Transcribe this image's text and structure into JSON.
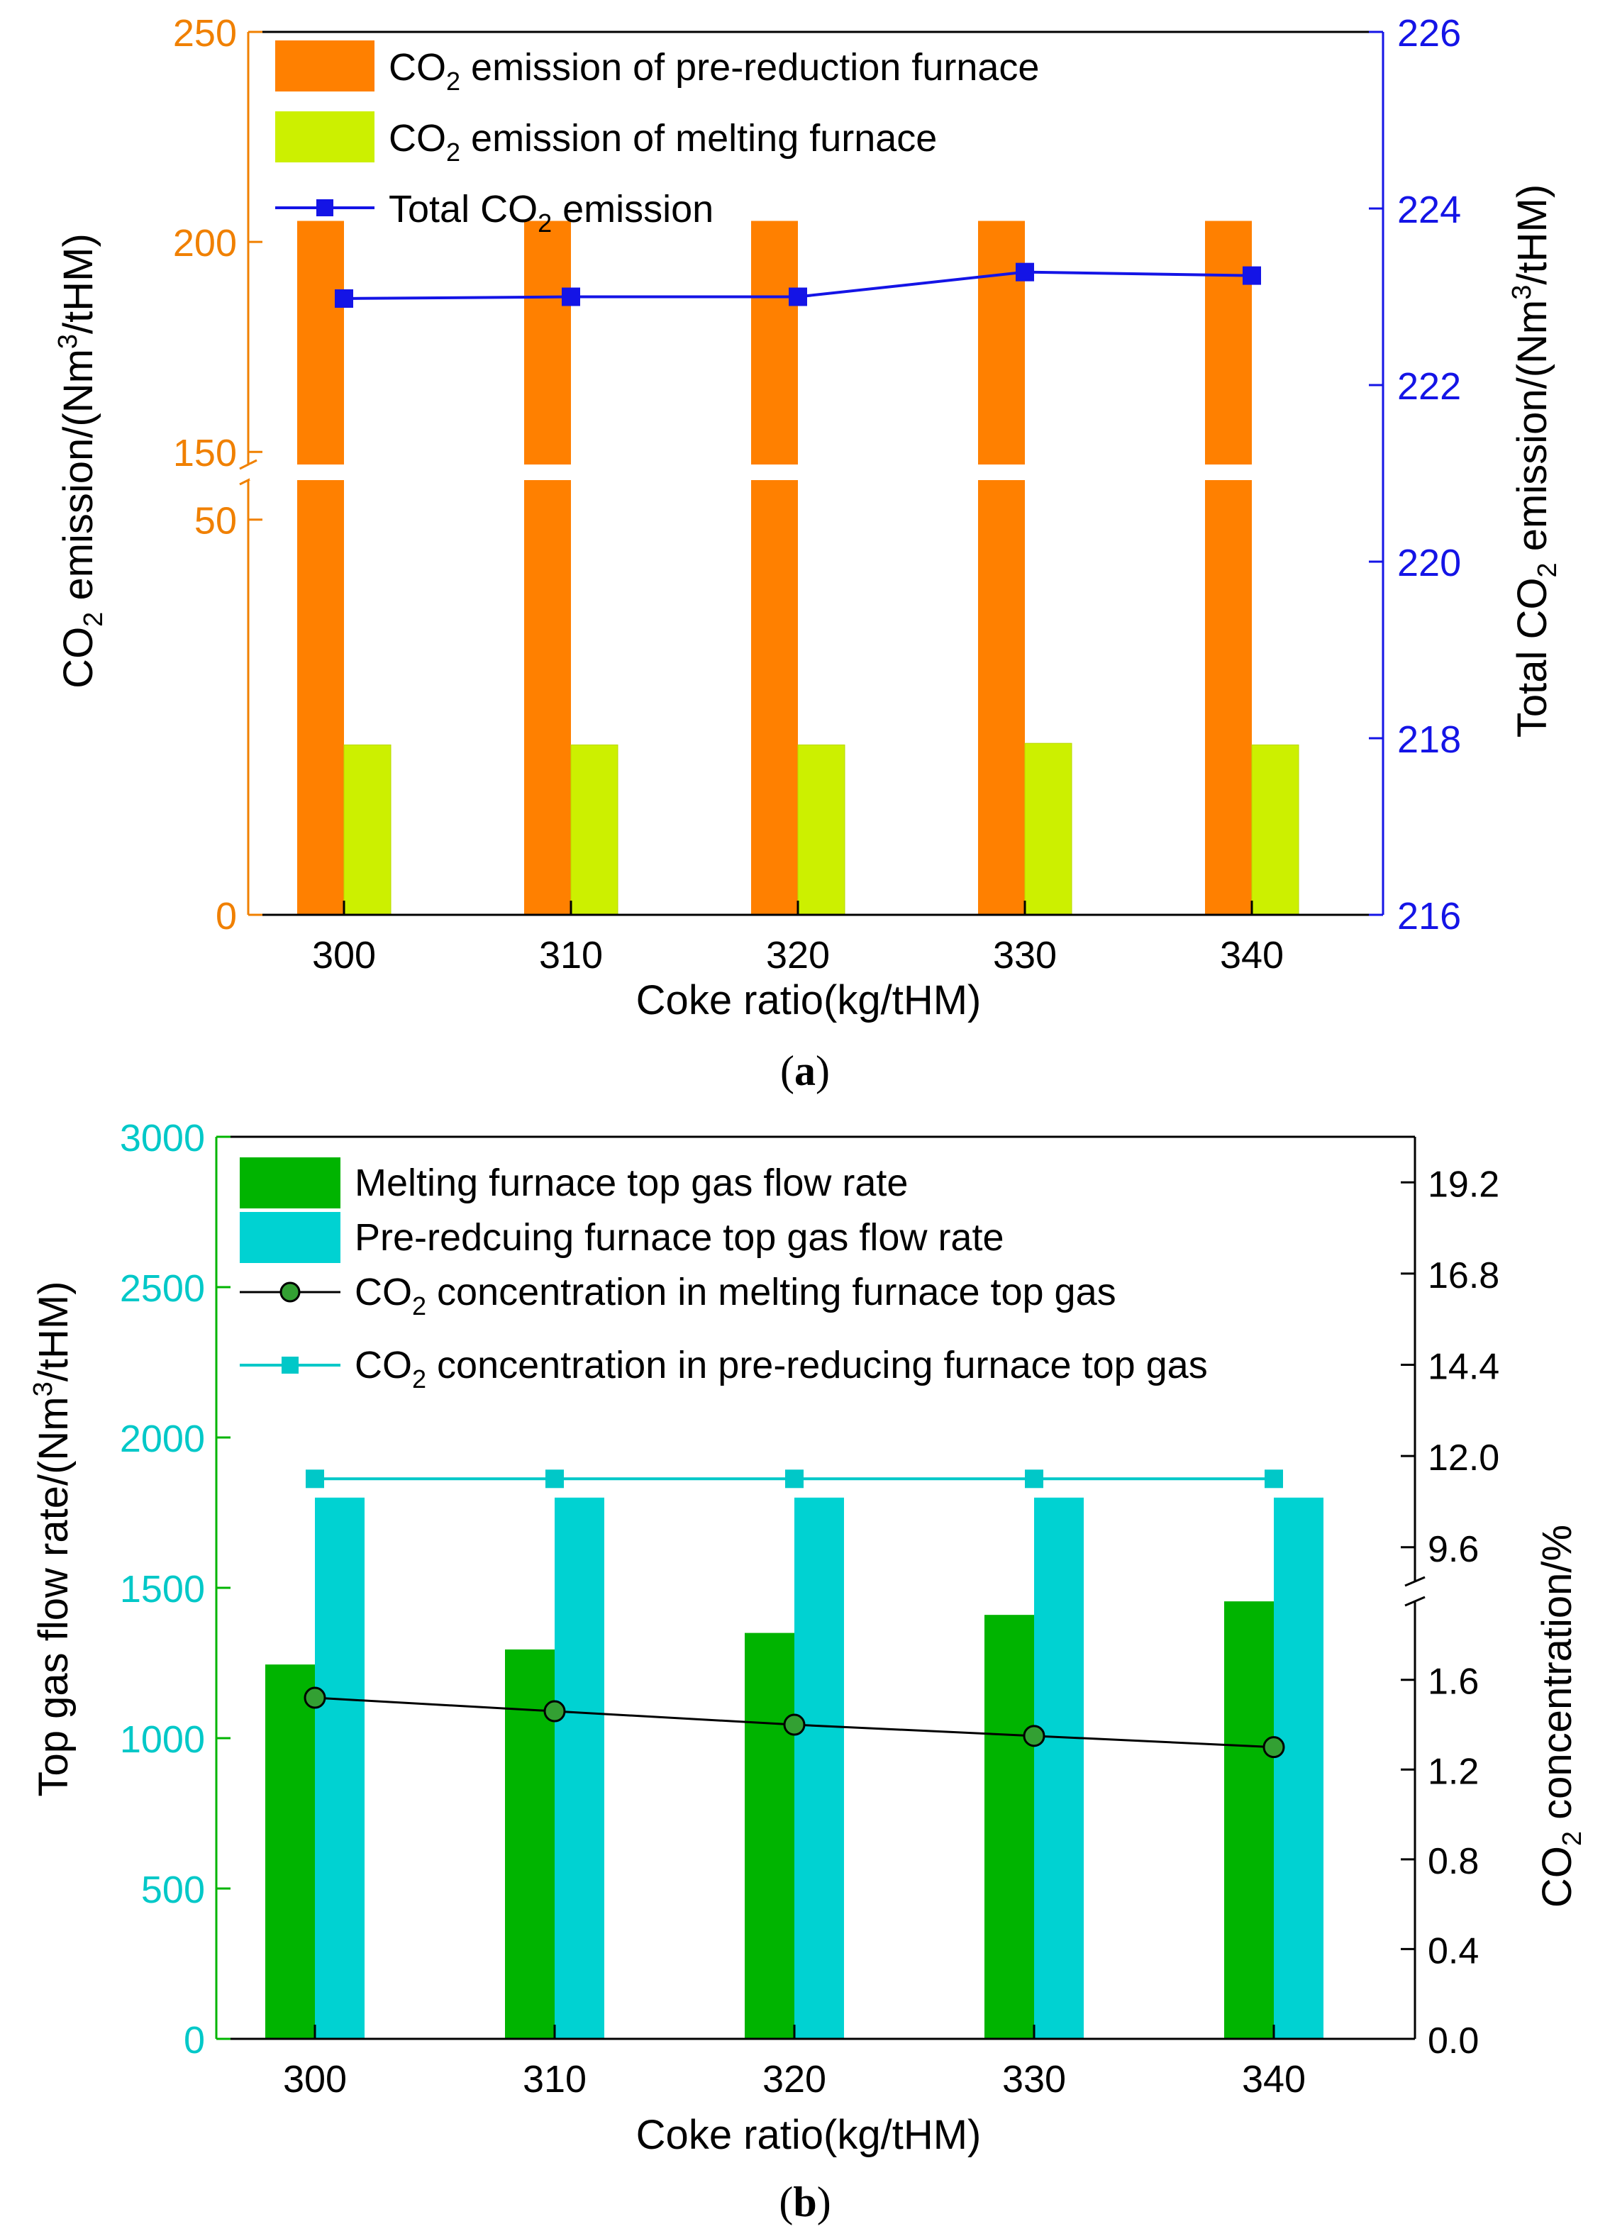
{
  "chart_data": [
    {
      "type": "bar+line",
      "panel_label": "a",
      "xlabel": "Coke ratio(kg/tHM)",
      "categories": [
        "300",
        "310",
        "320",
        "330",
        "340"
      ],
      "ylabel_left": {
        "pre": "CO",
        "sub": "2",
        "post": " emission/(Nm",
        "sup": "3",
        "end": "/tHM)"
      },
      "ylabel_right": {
        "pre": "Total CO",
        "sub": "2",
        "post": " emission/(Nm",
        "sup": "3",
        "end": "/tHM)"
      },
      "left_axis": {
        "ticks_lower": [
          "0",
          "50"
        ],
        "ticks_upper": [
          "150",
          "200",
          "250"
        ],
        "break": [
          50,
          150
        ],
        "lower_range": [
          0,
          55
        ],
        "upper_range": [
          147,
          250
        ]
      },
      "right_axis": {
        "range": [
          216,
          226
        ],
        "ticks": [
          "216",
          "218",
          "220",
          "222",
          "224",
          "226"
        ]
      },
      "series": [
        {
          "name": {
            "pre": "CO",
            "sub": "2",
            "post": " emission of pre-reduction furnace"
          },
          "kind": "bar",
          "axis": "left",
          "values": [
            205,
            205,
            205,
            205,
            205
          ]
        },
        {
          "name": {
            "pre": "CO",
            "sub": "2",
            "post": " emission of melting furnace"
          },
          "kind": "bar",
          "axis": "left",
          "values": [
            21.5,
            21.5,
            21.5,
            21.7,
            21.5
          ]
        },
        {
          "name": {
            "pre": "Total CO",
            "sub": "2",
            "post": " emission"
          },
          "kind": "line",
          "axis": "right",
          "values": [
            222.98,
            223.0,
            223.0,
            223.28,
            223.24
          ]
        }
      ],
      "colors": {
        "pre_bar": "#ff8000",
        "melt_bar": "#ccf000",
        "total_line": "#1414e6",
        "left_axis": "#f08000",
        "right_axis": "#1414e6"
      }
    },
    {
      "type": "bar+line",
      "panel_label": "b",
      "xlabel": "Coke ratio(kg/tHM)",
      "categories": [
        "300",
        "310",
        "320",
        "330",
        "340"
      ],
      "ylabel_left": {
        "pre": "Top gas flow rate/(Nm",
        "sup": "3",
        "post": "/tHM)"
      },
      "ylabel_right": {
        "pre": "CO",
        "sub": "2",
        "post": " concentration/%"
      },
      "left_axis": {
        "range": [
          0,
          3000
        ],
        "ticks": [
          "0",
          "500",
          "1000",
          "1500",
          "2000",
          "2500",
          "3000"
        ]
      },
      "right_axis": {
        "ticks_lower": [
          "0.0",
          "0.4",
          "0.8",
          "1.2",
          "1.6"
        ],
        "ticks_upper": [
          "9.6",
          "12.0",
          "14.4",
          "16.8",
          "19.2"
        ],
        "break": [
          1.95,
          8.7
        ],
        "lower_range": [
          0,
          1.95
        ],
        "upper_range": [
          8.7,
          20.4
        ]
      },
      "series": [
        {
          "name": {
            "pre": "Melting furnace top gas flow rate"
          },
          "kind": "bar",
          "axis": "left",
          "values": [
            1245,
            1295,
            1350,
            1410,
            1455
          ]
        },
        {
          "name": {
            "pre": "Pre-redcuing furnace top gas flow rate"
          },
          "kind": "bar",
          "axis": "left",
          "values": [
            1800,
            1800,
            1800,
            1800,
            1800
          ]
        },
        {
          "name": {
            "pre": "CO",
            "sub": "2",
            "post": " concentration in melting furnace top gas"
          },
          "kind": "line",
          "axis": "right",
          "marker": "circle",
          "values": [
            1.52,
            1.46,
            1.4,
            1.35,
            1.3
          ]
        },
        {
          "name": {
            "pre": "CO",
            "sub": "2",
            "post": " concentration in pre-reducing furnace top gas"
          },
          "kind": "line",
          "axis": "right",
          "marker": "square",
          "values": [
            11.4,
            11.4,
            11.4,
            11.4,
            11.4
          ]
        }
      ],
      "colors": {
        "melt_bar": "#00b400",
        "pre_bar": "#00d2d2",
        "melt_line": "#000000",
        "melt_marker": "#33a033",
        "pre_line": "#00c8c8",
        "left_axis": "#00c8c8",
        "right_axis": "#000000"
      }
    }
  ]
}
